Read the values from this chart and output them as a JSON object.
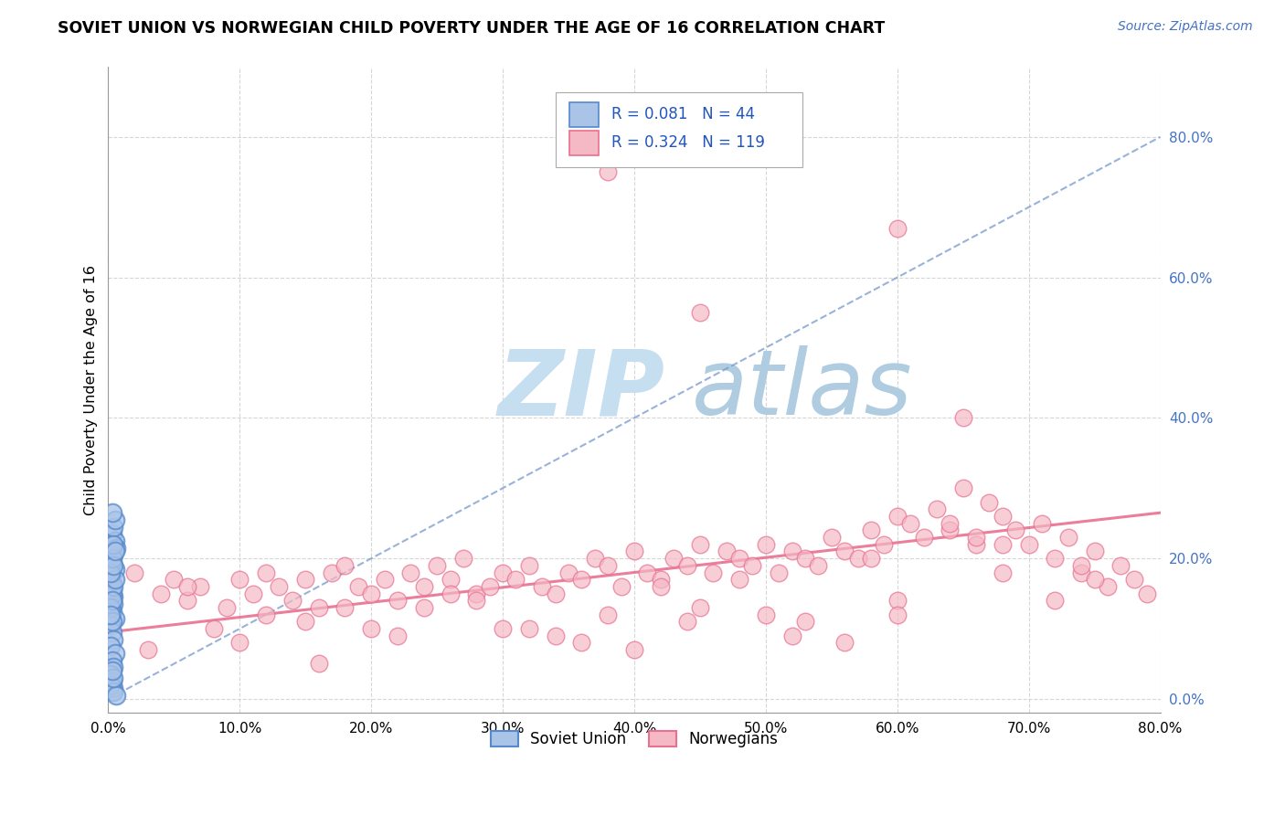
{
  "title": "SOVIET UNION VS NORWEGIAN CHILD POVERTY UNDER THE AGE OF 16 CORRELATION CHART",
  "source": "Source: ZipAtlas.com",
  "ylabel": "Child Poverty Under the Age of 16",
  "xlim": [
    0,
    0.8
  ],
  "ylim": [
    -0.02,
    0.9
  ],
  "xticks": [
    0.0,
    0.1,
    0.2,
    0.3,
    0.4,
    0.5,
    0.6,
    0.7,
    0.8
  ],
  "yticks_right": [
    0.0,
    0.2,
    0.4,
    0.6,
    0.8
  ],
  "background_color": "#ffffff",
  "grid_color": "#cccccc",
  "watermark_zip": "ZIP",
  "watermark_atlas": "atlas",
  "watermark_color_zip": "#c8dff0",
  "watermark_color_atlas": "#b8d4e8",
  "soviet_color": "#5588cc",
  "soviet_face": "#aac4e8",
  "norwegian_color": "#e87090",
  "norwegian_face": "#f5b8c5",
  "soviet_points_x": [
    0.003,
    0.004,
    0.005,
    0.003,
    0.002,
    0.004,
    0.005,
    0.003,
    0.002,
    0.006,
    0.004,
    0.003,
    0.005,
    0.002,
    0.003,
    0.004,
    0.004,
    0.003,
    0.002,
    0.005,
    0.003,
    0.004,
    0.002,
    0.003,
    0.004,
    0.005,
    0.003,
    0.002,
    0.004,
    0.006,
    0.003,
    0.004,
    0.005,
    0.002,
    0.003,
    0.004,
    0.002,
    0.003,
    0.004,
    0.005,
    0.003,
    0.002,
    0.004,
    0.003
  ],
  "soviet_points_y": [
    0.235,
    0.205,
    0.185,
    0.165,
    0.155,
    0.145,
    0.225,
    0.195,
    0.175,
    0.215,
    0.135,
    0.125,
    0.115,
    0.105,
    0.095,
    0.085,
    0.245,
    0.155,
    0.075,
    0.065,
    0.055,
    0.045,
    0.035,
    0.025,
    0.015,
    0.255,
    0.265,
    0.02,
    0.01,
    0.005,
    0.15,
    0.16,
    0.17,
    0.18,
    0.2,
    0.22,
    0.13,
    0.14,
    0.19,
    0.21,
    0.11,
    0.12,
    0.03,
    0.04
  ],
  "norwegian_points_x": [
    0.02,
    0.04,
    0.05,
    0.06,
    0.07,
    0.09,
    0.1,
    0.11,
    0.12,
    0.13,
    0.14,
    0.15,
    0.16,
    0.17,
    0.18,
    0.19,
    0.2,
    0.21,
    0.22,
    0.23,
    0.24,
    0.25,
    0.26,
    0.27,
    0.28,
    0.29,
    0.3,
    0.31,
    0.32,
    0.33,
    0.34,
    0.35,
    0.36,
    0.37,
    0.38,
    0.39,
    0.4,
    0.41,
    0.42,
    0.43,
    0.44,
    0.45,
    0.46,
    0.47,
    0.48,
    0.49,
    0.5,
    0.51,
    0.52,
    0.53,
    0.54,
    0.55,
    0.56,
    0.57,
    0.58,
    0.59,
    0.6,
    0.61,
    0.62,
    0.63,
    0.64,
    0.65,
    0.66,
    0.67,
    0.68,
    0.69,
    0.7,
    0.71,
    0.72,
    0.73,
    0.74,
    0.75,
    0.76,
    0.77,
    0.78,
    0.79,
    0.08,
    0.15,
    0.22,
    0.3,
    0.38,
    0.45,
    0.53,
    0.6,
    0.68,
    0.75,
    0.1,
    0.18,
    0.26,
    0.34,
    0.42,
    0.5,
    0.58,
    0.66,
    0.74,
    0.03,
    0.12,
    0.2,
    0.28,
    0.36,
    0.44,
    0.52,
    0.6,
    0.68,
    0.06,
    0.16,
    0.24,
    0.32,
    0.4,
    0.48,
    0.56,
    0.64,
    0.72,
    0.38,
    0.6,
    0.45,
    0.65
  ],
  "norwegian_points_y": [
    0.18,
    0.15,
    0.17,
    0.14,
    0.16,
    0.13,
    0.17,
    0.15,
    0.18,
    0.16,
    0.14,
    0.17,
    0.13,
    0.18,
    0.19,
    0.16,
    0.15,
    0.17,
    0.14,
    0.18,
    0.16,
    0.19,
    0.17,
    0.2,
    0.15,
    0.16,
    0.18,
    0.17,
    0.19,
    0.16,
    0.15,
    0.18,
    0.17,
    0.2,
    0.19,
    0.16,
    0.21,
    0.18,
    0.17,
    0.2,
    0.19,
    0.22,
    0.18,
    0.21,
    0.2,
    0.19,
    0.22,
    0.18,
    0.21,
    0.2,
    0.19,
    0.23,
    0.21,
    0.2,
    0.24,
    0.22,
    0.26,
    0.25,
    0.23,
    0.27,
    0.24,
    0.3,
    0.22,
    0.28,
    0.26,
    0.24,
    0.22,
    0.25,
    0.2,
    0.23,
    0.18,
    0.21,
    0.16,
    0.19,
    0.17,
    0.15,
    0.1,
    0.11,
    0.09,
    0.1,
    0.12,
    0.13,
    0.11,
    0.14,
    0.18,
    0.17,
    0.08,
    0.13,
    0.15,
    0.09,
    0.16,
    0.12,
    0.2,
    0.23,
    0.19,
    0.07,
    0.12,
    0.1,
    0.14,
    0.08,
    0.11,
    0.09,
    0.12,
    0.22,
    0.16,
    0.05,
    0.13,
    0.1,
    0.07,
    0.17,
    0.08,
    0.25,
    0.14,
    0.75,
    0.67,
    0.55,
    0.4
  ],
  "soviet_trendline_x": [
    0.0,
    0.8
  ],
  "soviet_trendline_y": [
    0.0,
    0.8
  ],
  "norwegian_trendline_x": [
    0.0,
    0.8
  ],
  "norwegian_trendline_y": [
    0.095,
    0.265
  ]
}
